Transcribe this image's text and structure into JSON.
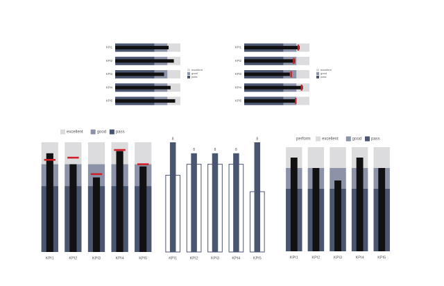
{
  "colors": {
    "excellent": "#dcdcde",
    "good": "#8c93a8",
    "pass": "#4a5570",
    "value_bar": "#111111",
    "target": "#d0202a",
    "column": "#4a5570",
    "outline": "#4a5570"
  },
  "chart_data": [
    {
      "type": "bar",
      "orientation": "horizontal",
      "subtype": "bullet",
      "categories": [
        "KPI1",
        "KPI2",
        "KPI3",
        "KPI4",
        "KPI5"
      ],
      "legend": [
        "excellent",
        "good",
        "pass"
      ],
      "legend_position": "right",
      "series": [
        {
          "name": "excellent",
          "values": [
            100,
            100,
            100,
            100,
            100
          ]
        },
        {
          "name": "good",
          "values": [
            80,
            80,
            80,
            80,
            80
          ]
        },
        {
          "name": "pass",
          "values": [
            60,
            60,
            60,
            60,
            60
          ]
        }
      ],
      "values": [
        82,
        90,
        75,
        85,
        92
      ],
      "xlim": [
        0,
        100
      ]
    },
    {
      "type": "bar",
      "orientation": "horizontal",
      "subtype": "bullet",
      "categories": [
        "KPI1",
        "KPI2",
        "KPI3",
        "KPI4",
        "KPI5"
      ],
      "legend": [
        "excellent",
        "good",
        "pass"
      ],
      "legend_position": "right",
      "series": [
        {
          "name": "excellent",
          "values": [
            100,
            100,
            100,
            100,
            100
          ]
        },
        {
          "name": "good",
          "values": [
            80,
            80,
            80,
            80,
            80
          ]
        },
        {
          "name": "pass",
          "values": [
            60,
            60,
            60,
            60,
            60
          ]
        }
      ],
      "values": [
        85,
        78,
        70,
        90,
        80
      ],
      "targets": [
        83,
        76,
        72,
        88,
        79
      ],
      "xlim": [
        0,
        100
      ]
    },
    {
      "type": "bar",
      "orientation": "vertical",
      "subtype": "bullet",
      "categories": [
        "KPI1",
        "KPI2",
        "KPI3",
        "KPI4",
        "KPI5"
      ],
      "legend": [
        "excellent",
        "good",
        "pass"
      ],
      "legend_position": "top",
      "series": [
        {
          "name": "excellent",
          "values": [
            100,
            100,
            100,
            100,
            100
          ]
        },
        {
          "name": "good",
          "values": [
            80,
            80,
            80,
            80,
            80
          ]
        },
        {
          "name": "pass",
          "values": [
            60,
            60,
            60,
            60,
            60
          ]
        }
      ],
      "values": [
        90,
        80,
        68,
        92,
        78
      ],
      "targets": [
        84,
        86,
        71,
        93,
        80
      ],
      "ylim": [
        0,
        100
      ]
    },
    {
      "type": "bar",
      "orientation": "vertical",
      "categories": [
        "KPI1",
        "KPI2",
        "KPI3",
        "KPI4",
        "KPI5"
      ],
      "values": [
        100,
        90,
        90,
        90,
        100
      ],
      "outline_values": [
        70,
        80,
        80,
        80,
        55
      ],
      "data_labels": [
        "8",
        "8",
        "8",
        "8",
        "8"
      ],
      "ylim": [
        0,
        100
      ]
    },
    {
      "type": "bar",
      "orientation": "vertical",
      "subtype": "bullet",
      "categories": [
        "KPI1",
        "KPI2",
        "KPI3",
        "KPI4",
        "KPI5"
      ],
      "legend": [
        "perform",
        "excellent",
        "good",
        "pass"
      ],
      "legend_position": "top",
      "series": [
        {
          "name": "excellent",
          "values": [
            100,
            100,
            100,
            100,
            100
          ]
        },
        {
          "name": "good",
          "values": [
            80,
            80,
            80,
            80,
            80
          ]
        },
        {
          "name": "pass",
          "values": [
            60,
            60,
            60,
            60,
            60
          ]
        }
      ],
      "values": [
        90,
        80,
        68,
        90,
        80
      ],
      "ylim": [
        0,
        100
      ]
    }
  ]
}
